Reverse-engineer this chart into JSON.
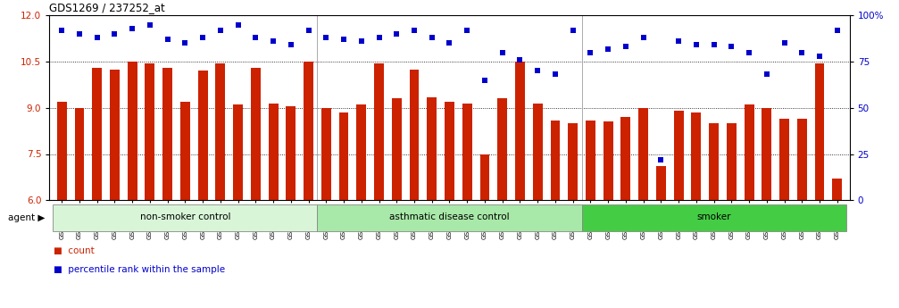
{
  "title": "GDS1269 / 237252_at",
  "samples": [
    "GSM38345",
    "GSM38346",
    "GSM38348",
    "GSM38350",
    "GSM38351",
    "GSM38353",
    "GSM38355",
    "GSM38356",
    "GSM38358",
    "GSM38362",
    "GSM38368",
    "GSM38371",
    "GSM38373",
    "GSM38377",
    "GSM38385",
    "GSM38361",
    "GSM38363",
    "GSM38364",
    "GSM38365",
    "GSM38370",
    "GSM38372",
    "GSM38375",
    "GSM38378",
    "GSM38379",
    "GSM38381",
    "GSM38383",
    "GSM38386",
    "GSM38387",
    "GSM38388",
    "GSM38389",
    "GSM38347",
    "GSM38349",
    "GSM38352",
    "GSM38354",
    "GSM38357",
    "GSM38359",
    "GSM38360",
    "GSM38366",
    "GSM38367",
    "GSM38369",
    "GSM38374",
    "GSM38376",
    "GSM38380",
    "GSM38382",
    "GSM38384"
  ],
  "bar_values": [
    9.2,
    9.0,
    10.3,
    10.25,
    10.5,
    10.45,
    10.3,
    9.2,
    10.2,
    10.45,
    9.1,
    10.3,
    9.15,
    9.05,
    10.5,
    9.0,
    8.85,
    9.1,
    10.45,
    9.3,
    10.25,
    9.35,
    9.2,
    9.15,
    7.5,
    9.3,
    10.5,
    9.15,
    8.6,
    8.5,
    8.6,
    8.55,
    8.7,
    9.0,
    7.1,
    8.9,
    8.85,
    8.5,
    8.5,
    9.1,
    9.0,
    8.65,
    8.65,
    10.45,
    6.7
  ],
  "percentile_values": [
    92,
    90,
    88,
    90,
    93,
    95,
    87,
    85,
    88,
    92,
    95,
    88,
    86,
    84,
    92,
    88,
    87,
    86,
    88,
    90,
    92,
    88,
    85,
    92,
    65,
    80,
    76,
    70,
    68,
    92,
    80,
    82,
    83,
    88,
    22,
    86,
    84,
    84,
    83,
    80,
    68,
    85,
    80,
    78,
    92
  ],
  "groups": [
    {
      "label": "non-smoker control",
      "start": 0,
      "end": 14,
      "color": "#d8f5d8"
    },
    {
      "label": "asthmatic disease control",
      "start": 15,
      "end": 29,
      "color": "#a8e8a8"
    },
    {
      "label": "smoker",
      "start": 30,
      "end": 44,
      "color": "#44cc44"
    }
  ],
  "group_boundary_indices": [
    15,
    30
  ],
  "bar_color": "#cc2200",
  "dot_color": "#0000cc",
  "ylim_left": [
    6,
    12
  ],
  "ylim_right": [
    0,
    100
  ],
  "yticks_left": [
    6,
    7.5,
    9,
    10.5,
    12
  ],
  "yticks_right": [
    0,
    25,
    50,
    75,
    100
  ],
  "ytick_right_labels": [
    "0",
    "25",
    "50",
    "75",
    "100%"
  ],
  "background_color": "#ffffff",
  "bar_baseline": 6
}
